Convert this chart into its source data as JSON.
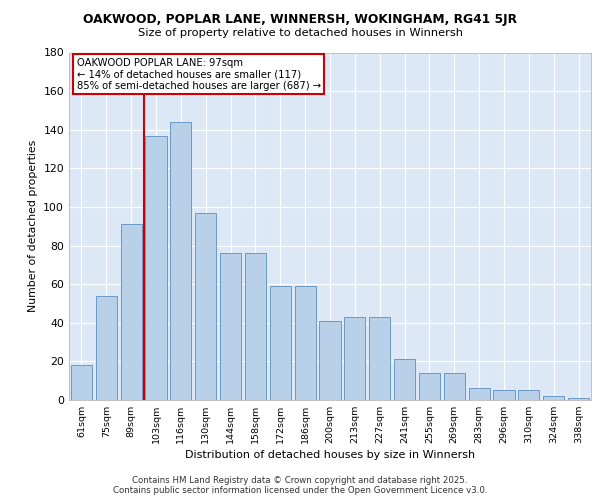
{
  "title": "OAKWOOD, POPLAR LANE, WINNERSH, WOKINGHAM, RG41 5JR",
  "subtitle": "Size of property relative to detached houses in Winnersh",
  "xlabel": "Distribution of detached houses by size in Winnersh",
  "ylabel": "Number of detached properties",
  "categories": [
    "61sqm",
    "75sqm",
    "89sqm",
    "103sqm",
    "116sqm",
    "130sqm",
    "144sqm",
    "158sqm",
    "172sqm",
    "186sqm",
    "200sqm",
    "213sqm",
    "227sqm",
    "241sqm",
    "255sqm",
    "269sqm",
    "283sqm",
    "296sqm",
    "310sqm",
    "324sqm",
    "338sqm"
  ],
  "bar_values": [
    18,
    54,
    91,
    137,
    144,
    97,
    76,
    76,
    59,
    59,
    41,
    43,
    43,
    21,
    14,
    14,
    6,
    5,
    5,
    2,
    1
  ],
  "property_label": "OAKWOOD POPLAR LANE: 97sqm",
  "annotation_line1": "← 14% of detached houses are smaller (117)",
  "annotation_line2": "85% of semi-detached houses are larger (687) →",
  "vline_x": 2.5,
  "bar_color": "#b8d0e8",
  "bar_edge_color": "#5a8fc0",
  "vline_color": "#cc0000",
  "box_edge_color": "#cc0000",
  "background_color": "#dce8f5",
  "ylim": [
    0,
    180
  ],
  "yticks": [
    0,
    20,
    40,
    60,
    80,
    100,
    120,
    140,
    160,
    180
  ],
  "footer_line1": "Contains HM Land Registry data © Crown copyright and database right 2025.",
  "footer_line2": "Contains public sector information licensed under the Open Government Licence v3.0."
}
